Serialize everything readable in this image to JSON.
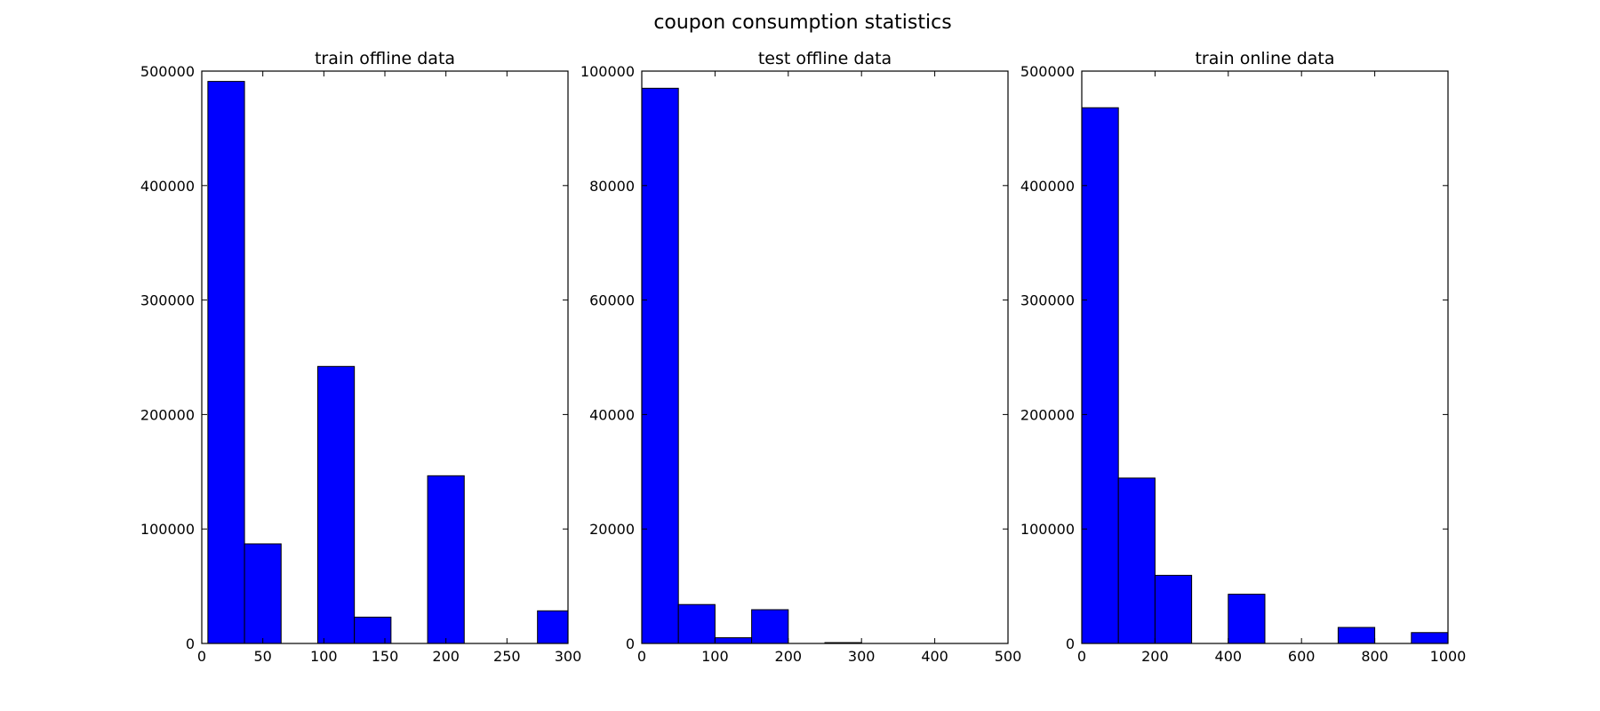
{
  "figure": {
    "suptitle": "coupon consumption statistics"
  },
  "chart_data": [
    {
      "type": "bar",
      "subtype": "histogram",
      "title": "train offline data",
      "xlim": [
        0,
        300
      ],
      "ylim": [
        0,
        500000
      ],
      "xticks": [
        "0",
        "50",
        "100",
        "150",
        "200",
        "250",
        "300"
      ],
      "yticks": [
        "0",
        "100000",
        "200000",
        "300000",
        "400000",
        "500000"
      ],
      "bar_color": "#0000ff",
      "bins": [
        {
          "x0": 5,
          "x1": 35,
          "value": 491000
        },
        {
          "x0": 35,
          "x1": 65,
          "value": 87000
        },
        {
          "x0": 65,
          "x1": 95,
          "value": 0
        },
        {
          "x0": 95,
          "x1": 125,
          "value": 242000
        },
        {
          "x0": 125,
          "x1": 155,
          "value": 23000
        },
        {
          "x0": 155,
          "x1": 185,
          "value": 0
        },
        {
          "x0": 185,
          "x1": 215,
          "value": 146500
        },
        {
          "x0": 215,
          "x1": 245,
          "value": 0
        },
        {
          "x0": 245,
          "x1": 275,
          "value": 0
        },
        {
          "x0": 275,
          "x1": 305,
          "value": 28500
        }
      ]
    },
    {
      "type": "bar",
      "subtype": "histogram",
      "title": "test offline data",
      "xlim": [
        0,
        500
      ],
      "ylim": [
        0,
        100000
      ],
      "xticks": [
        "0",
        "100",
        "200",
        "300",
        "400",
        "500"
      ],
      "yticks": [
        "0",
        "20000",
        "40000",
        "60000",
        "80000",
        "100000"
      ],
      "bar_color": "#0000ff",
      "bins": [
        {
          "x0": 0,
          "x1": 50,
          "value": 97000
        },
        {
          "x0": 50,
          "x1": 100,
          "value": 6800
        },
        {
          "x0": 100,
          "x1": 150,
          "value": 1000
        },
        {
          "x0": 150,
          "x1": 200,
          "value": 5900
        },
        {
          "x0": 200,
          "x1": 250,
          "value": 0
        },
        {
          "x0": 250,
          "x1": 300,
          "value": 150
        },
        {
          "x0": 300,
          "x1": 350,
          "value": 0
        },
        {
          "x0": 350,
          "x1": 400,
          "value": 0
        },
        {
          "x0": 400,
          "x1": 450,
          "value": 0
        },
        {
          "x0": 450,
          "x1": 500,
          "value": 0
        }
      ]
    },
    {
      "type": "bar",
      "subtype": "histogram",
      "title": "train online data",
      "xlim": [
        0,
        1000
      ],
      "ylim": [
        0,
        500000
      ],
      "xticks": [
        "0",
        "200",
        "400",
        "600",
        "800",
        "1000"
      ],
      "yticks": [
        "0",
        "100000",
        "200000",
        "300000",
        "400000",
        "500000"
      ],
      "bar_color": "#0000ff",
      "bins": [
        {
          "x0": 0,
          "x1": 100,
          "value": 468000
        },
        {
          "x0": 100,
          "x1": 200,
          "value": 144500
        },
        {
          "x0": 200,
          "x1": 300,
          "value": 59500
        },
        {
          "x0": 300,
          "x1": 400,
          "value": 0
        },
        {
          "x0": 400,
          "x1": 500,
          "value": 43000
        },
        {
          "x0": 500,
          "x1": 600,
          "value": 0
        },
        {
          "x0": 600,
          "x1": 700,
          "value": 0
        },
        {
          "x0": 700,
          "x1": 800,
          "value": 14000
        },
        {
          "x0": 800,
          "x1": 900,
          "value": 0
        },
        {
          "x0": 900,
          "x1": 1000,
          "value": 9500
        }
      ]
    }
  ]
}
